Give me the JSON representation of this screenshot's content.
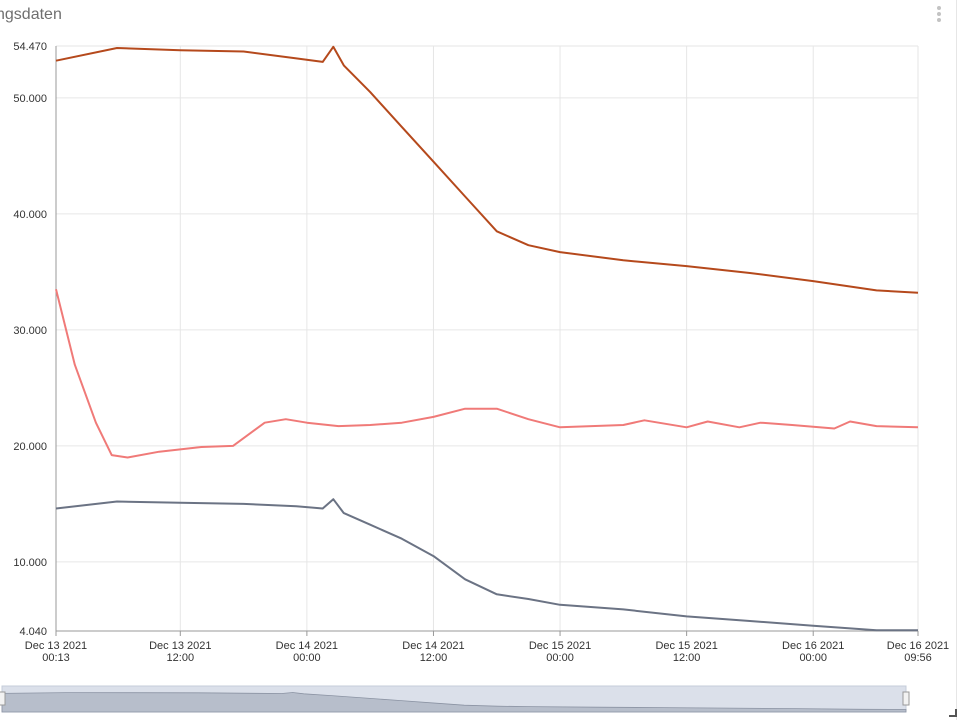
{
  "header": {
    "title": "ngsdaten"
  },
  "chart_data": {
    "type": "line",
    "title": "ngsdaten",
    "xlabel": "",
    "ylabel": "",
    "ylim": [
      4.04,
      54.47
    ],
    "y_ticks": [
      "54.470",
      "50.000",
      "40.000",
      "30.000",
      "20.000",
      "10.000",
      "4.040"
    ],
    "x_ticks": [
      [
        "Dec 13 2021",
        "00:13"
      ],
      [
        "Dec 13 2021",
        "12:00"
      ],
      [
        "Dec 14 2021",
        "00:00"
      ],
      [
        "Dec 14 2021",
        "12:00"
      ],
      [
        "Dec 15 2021",
        "00:00"
      ],
      [
        "Dec 15 2021",
        "12:00"
      ],
      [
        "Dec 16 2021",
        "00:00"
      ],
      [
        "Dec 16 2021",
        "09:56"
      ]
    ],
    "grid": true,
    "legend": "none",
    "colors": [
      "#b5491c",
      "#f07a78",
      "#6b7384"
    ],
    "series": [
      {
        "x": [
          "2021-12-13 00:13",
          "2021-12-13 06:00",
          "2021-12-13 12:00",
          "2021-12-13 18:00",
          "2021-12-13 23:00",
          "2021-12-14 01:30",
          "2021-12-14 02:30",
          "2021-12-14 03:30",
          "2021-12-14 06:00",
          "2021-12-14 09:00",
          "2021-12-14 12:00",
          "2021-12-14 15:00",
          "2021-12-14 18:00",
          "2021-12-14 21:00",
          "2021-12-15 00:00",
          "2021-12-15 06:00",
          "2021-12-15 12:00",
          "2021-12-15 18:00",
          "2021-12-16 00:00",
          "2021-12-16 06:00",
          "2021-12-16 09:56"
        ],
        "values": [
          53.2,
          54.3,
          54.1,
          54.0,
          53.4,
          53.1,
          54.4,
          52.8,
          50.5,
          47.5,
          44.5,
          41.5,
          38.5,
          37.3,
          36.7,
          36.0,
          35.5,
          34.9,
          34.2,
          33.4,
          33.2
        ]
      },
      {
        "x": [
          "2021-12-13 00:13",
          "2021-12-13 02:00",
          "2021-12-13 04:00",
          "2021-12-13 05:30",
          "2021-12-13 07:00",
          "2021-12-13 10:00",
          "2021-12-13 14:00",
          "2021-12-13 17:00",
          "2021-12-13 20:00",
          "2021-12-13 22:00",
          "2021-12-14 00:00",
          "2021-12-14 03:00",
          "2021-12-14 06:00",
          "2021-12-14 09:00",
          "2021-12-14 12:00",
          "2021-12-14 15:00",
          "2021-12-14 18:00",
          "2021-12-14 21:00",
          "2021-12-15 00:00",
          "2021-12-15 06:00",
          "2021-12-15 08:00",
          "2021-12-15 12:00",
          "2021-12-15 14:00",
          "2021-12-15 17:00",
          "2021-12-15 19:00",
          "2021-12-15 22:00",
          "2021-12-16 02:00",
          "2021-12-16 03:30",
          "2021-12-16 06:00",
          "2021-12-16 09:56"
        ],
        "values": [
          33.5,
          27.0,
          22.0,
          19.2,
          19.0,
          19.5,
          19.9,
          20.0,
          22.0,
          22.3,
          22.0,
          21.7,
          21.8,
          22.0,
          22.5,
          23.2,
          23.2,
          22.3,
          21.6,
          21.8,
          22.2,
          21.6,
          22.1,
          21.6,
          22.0,
          21.8,
          21.5,
          22.1,
          21.7,
          21.6
        ]
      },
      {
        "x": [
          "2021-12-13 00:13",
          "2021-12-13 06:00",
          "2021-12-13 12:00",
          "2021-12-13 18:00",
          "2021-12-13 23:00",
          "2021-12-14 01:30",
          "2021-12-14 02:30",
          "2021-12-14 03:30",
          "2021-12-14 06:00",
          "2021-12-14 09:00",
          "2021-12-14 12:00",
          "2021-12-14 15:00",
          "2021-12-14 18:00",
          "2021-12-14 21:00",
          "2021-12-15 00:00",
          "2021-12-15 06:00",
          "2021-12-15 12:00",
          "2021-12-15 18:00",
          "2021-12-16 00:00",
          "2021-12-16 06:00",
          "2021-12-16 09:56"
        ],
        "values": [
          14.6,
          15.2,
          15.1,
          15.0,
          14.8,
          14.6,
          15.4,
          14.2,
          13.2,
          12.0,
          10.5,
          8.5,
          7.2,
          6.8,
          6.3,
          5.9,
          5.3,
          4.9,
          4.5,
          4.1,
          4.1
        ]
      }
    ],
    "navigator": {
      "range": [
        "Dec 13 2021 00:13",
        "Dec 16 2021 09:56"
      ]
    }
  }
}
